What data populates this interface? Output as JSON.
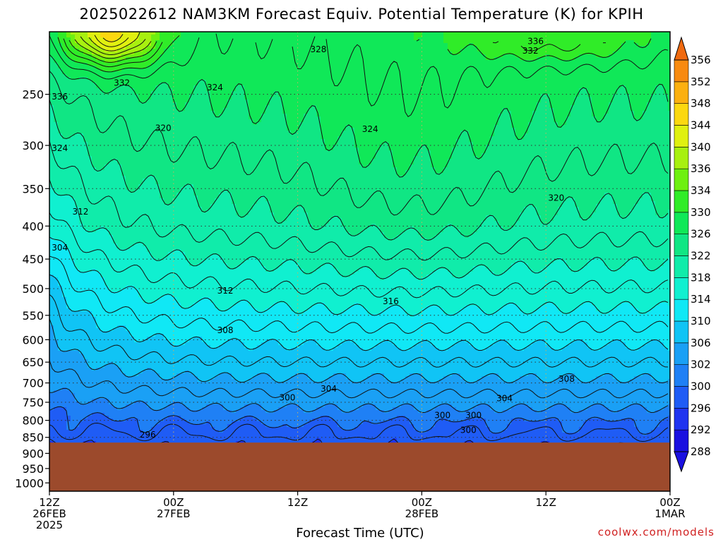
{
  "chart_data": {
    "type": "contour",
    "title": "2025022612 NAM3KM Forecast Equiv. Potential Temperature (K) for KPIH",
    "xlabel": "Forecast Time (UTC)",
    "ylabel": "",
    "credit": "coolwx.com/models",
    "x_ticks": [
      {
        "hour": 0,
        "lines": [
          "12Z",
          "26FEB",
          "2025"
        ]
      },
      {
        "hour": 12,
        "lines": [
          "00Z",
          "27FEB"
        ]
      },
      {
        "hour": 24,
        "lines": [
          "12Z"
        ]
      },
      {
        "hour": 36,
        "lines": [
          "00Z",
          "28FEB"
        ]
      },
      {
        "hour": 48,
        "lines": [
          "12Z"
        ]
      },
      {
        "hour": 60,
        "lines": [
          "00Z",
          "1MAR"
        ]
      }
    ],
    "x_range_hours": [
      0,
      60
    ],
    "y_ticks": [
      250,
      300,
      350,
      400,
      450,
      500,
      550,
      600,
      650,
      700,
      750,
      800,
      850,
      900,
      950,
      1000
    ],
    "y_range_hPa": [
      200,
      1030
    ],
    "y_scale": "log",
    "surface_pressure_hPa": 866,
    "colorbar": {
      "levels": [
        288,
        292,
        296,
        300,
        302,
        306,
        310,
        314,
        318,
        322,
        326,
        330,
        334,
        336,
        340,
        344,
        348,
        352,
        356
      ],
      "colors": [
        "#1a10e0",
        "#1f34f0",
        "#1f5cf5",
        "#1f80f5",
        "#1aa0f5",
        "#10c4f5",
        "#10e8f5",
        "#10f0d0",
        "#10ecaa",
        "#10e684",
        "#10e858",
        "#30ec28",
        "#6ef010",
        "#a8f010",
        "#e0f010",
        "#fcd810",
        "#fcb010",
        "#f88a10",
        "#f06a10"
      ]
    },
    "contour_labels": [
      {
        "value": "336",
        "hour": 1.0,
        "p": 252
      },
      {
        "value": "332",
        "hour": 7.0,
        "p": 240
      },
      {
        "value": "328",
        "hour": 26.0,
        "p": 213
      },
      {
        "value": "336",
        "hour": 47.0,
        "p": 207
      },
      {
        "value": "332",
        "hour": 46.5,
        "p": 214
      },
      {
        "value": "324",
        "hour": 16.0,
        "p": 244
      },
      {
        "value": "324",
        "hour": 31.0,
        "p": 283
      },
      {
        "value": "324",
        "hour": 1.0,
        "p": 303
      },
      {
        "value": "320",
        "hour": 11.0,
        "p": 282
      },
      {
        "value": "320",
        "hour": 49.0,
        "p": 362
      },
      {
        "value": "312",
        "hour": 3.0,
        "p": 380
      },
      {
        "value": "304",
        "hour": 1.0,
        "p": 432
      },
      {
        "value": "312",
        "hour": 17.0,
        "p": 504
      },
      {
        "value": "316",
        "hour": 33.0,
        "p": 523
      },
      {
        "value": "308",
        "hour": 17.0,
        "p": 580
      },
      {
        "value": "308",
        "hour": 50.0,
        "p": 690
      },
      {
        "value": "304",
        "hour": 27.0,
        "p": 715
      },
      {
        "value": "304",
        "hour": 44.0,
        "p": 740
      },
      {
        "value": "300",
        "hour": 23.0,
        "p": 738
      },
      {
        "value": "300",
        "hour": 38.0,
        "p": 786
      },
      {
        "value": "300",
        "hour": 41.0,
        "p": 786
      },
      {
        "value": "300",
        "hour": 40.5,
        "p": 828
      },
      {
        "value": "296",
        "hour": 9.5,
        "p": 842
      }
    ]
  }
}
